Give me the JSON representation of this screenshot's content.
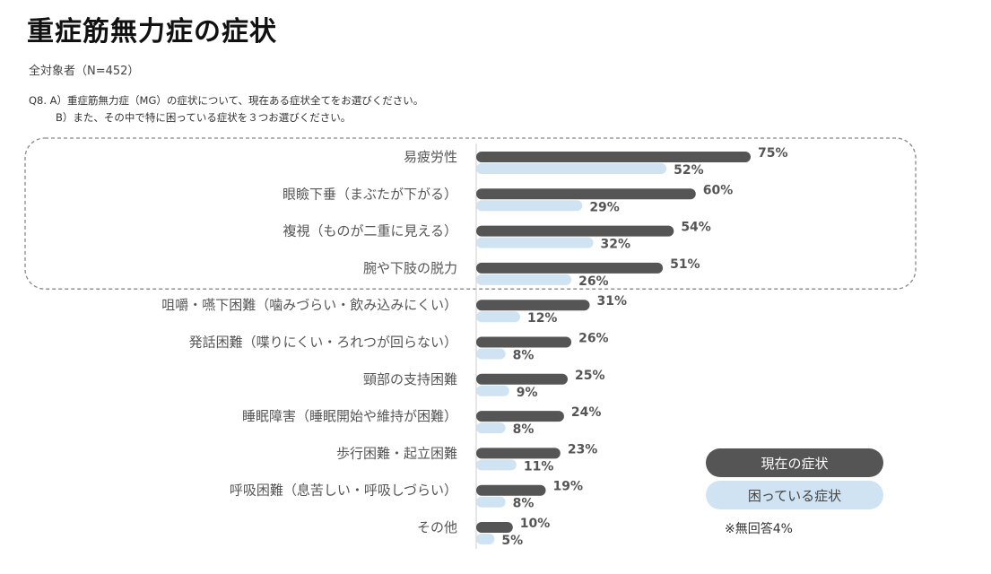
{
  "header": {
    "title": "重症筋無力症の症状",
    "subtitle": "全対象者（N=452）",
    "question_line1": "Q8.  A）重症筋無力症（MG）の症状について、現在ある症状全てをお選びください。",
    "question_line2": "B）また、その中で特に困っている症状を３つお選びください。"
  },
  "legend": {
    "current": "現在の症状",
    "trouble": "困っている症状"
  },
  "note": "※無回答4%",
  "colors": {
    "current": "#555555",
    "trouble": "#cfe3f3",
    "highlight_border": "#888888"
  },
  "chart_data": {
    "type": "bar",
    "orientation": "horizontal",
    "title": "重症筋無力症の症状",
    "categories": [
      "易疲労性",
      "眼瞼下垂（まぶたが下がる）",
      "複視（ものが二重に見える）",
      "腕や下肢の脱力",
      "咀嚼・嚥下困難（噛みづらい・飲み込みにくい）",
      "発話困難（喋りにくい・ろれつが回らない）",
      "頸部の支持困難",
      "睡眠障害（睡眠開始や維持が困難）",
      "歩行困難・起立困難",
      "呼吸困難（息苦しい・呼吸しづらい）",
      "その他"
    ],
    "series": [
      {
        "name": "現在の症状",
        "values": [
          75,
          60,
          54,
          51,
          31,
          26,
          25,
          24,
          23,
          19,
          10
        ]
      },
      {
        "name": "困っている症状",
        "values": [
          52,
          29,
          32,
          26,
          12,
          8,
          9,
          8,
          11,
          8,
          5
        ]
      }
    ],
    "value_suffix": "%",
    "highlighted_categories": 4,
    "xlim": [
      0,
      100
    ]
  }
}
